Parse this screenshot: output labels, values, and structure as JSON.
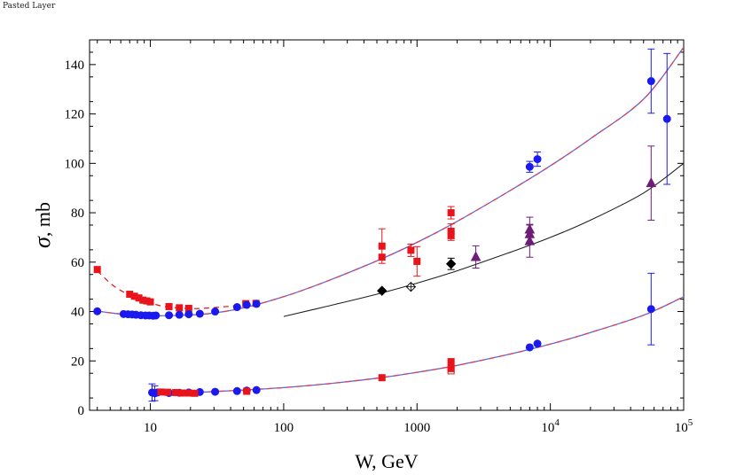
{
  "header": {
    "layer_label": "Pasted Layer"
  },
  "chart_data": {
    "type": "scatter",
    "title": "",
    "xlabel": "W, GeV",
    "ylabel_symbol": "σ",
    "ylabel_unit": ", mb",
    "x_scale": "log",
    "xlim": [
      3.5,
      100000
    ],
    "ylim": [
      0,
      150
    ],
    "y_ticks": [
      0,
      20,
      40,
      60,
      80,
      100,
      120,
      140
    ],
    "x_ticks": [
      {
        "value": 10,
        "base": "10",
        "exp": ""
      },
      {
        "value": 100,
        "base": "100",
        "exp": ""
      },
      {
        "value": 1000,
        "base": "1000",
        "exp": ""
      },
      {
        "value": 10000,
        "base": "10",
        "exp": "4"
      },
      {
        "value": 100000,
        "base": "10",
        "exp": "5"
      }
    ],
    "colors": {
      "red": "#e8141b",
      "blue": "#1a1aee",
      "purple": "#6e1c78",
      "black": "#000000",
      "curve_blue": "#5a6ae6",
      "curve_pink": "#e0405a"
    },
    "curves": [
      {
        "name": "total-cross-section-fit",
        "style": "blue-red-dashed",
        "points": [
          [
            4,
            40.2
          ],
          [
            6,
            39
          ],
          [
            10,
            38.3
          ],
          [
            20,
            38.6
          ],
          [
            30,
            39.4
          ],
          [
            50,
            41.5
          ],
          [
            100,
            46
          ],
          [
            200,
            51.8
          ],
          [
            500,
            60.5
          ],
          [
            1000,
            68
          ],
          [
            2000,
            76.5
          ],
          [
            5000,
            89
          ],
          [
            10000,
            99
          ],
          [
            20000,
            110
          ],
          [
            50000,
            126
          ],
          [
            100000,
            147
          ]
        ]
      },
      {
        "name": "pp-low-energy-fit",
        "style": "red-dashed",
        "points": [
          [
            4,
            56.5
          ],
          [
            5,
            51.5
          ],
          [
            6,
            48.5
          ],
          [
            8,
            45.2
          ],
          [
            10,
            43.5
          ],
          [
            13,
            42
          ],
          [
            20,
            41.2
          ],
          [
            30,
            41.6
          ],
          [
            60,
            43
          ]
        ]
      },
      {
        "name": "inelastic-fit",
        "style": "black-solid",
        "points": [
          [
            100,
            38
          ],
          [
            200,
            41.8
          ],
          [
            500,
            47
          ],
          [
            1000,
            51.5
          ],
          [
            2000,
            56.5
          ],
          [
            5000,
            64
          ],
          [
            10000,
            70
          ],
          [
            20000,
            77
          ],
          [
            50000,
            88
          ],
          [
            100000,
            100
          ]
        ]
      },
      {
        "name": "elastic-fit",
        "style": "blue-red-dashed",
        "points": [
          [
            10,
            7
          ],
          [
            20,
            7.2
          ],
          [
            50,
            8.2
          ],
          [
            100,
            9.2
          ],
          [
            200,
            10.6
          ],
          [
            500,
            13
          ],
          [
            1000,
            15.4
          ],
          [
            2000,
            18.2
          ],
          [
            5000,
            22.8
          ],
          [
            10000,
            26.8
          ],
          [
            20000,
            31.5
          ],
          [
            50000,
            38.5
          ],
          [
            100000,
            46
          ]
        ]
      }
    ],
    "series": [
      {
        "name": "pp-total",
        "marker": "square",
        "color": "red",
        "points": [
          {
            "x": 4,
            "y": 57
          },
          {
            "x": 7,
            "y": 47
          },
          {
            "x": 7.6,
            "y": 46.2
          },
          {
            "x": 8.2,
            "y": 45.5
          },
          {
            "x": 8.8,
            "y": 44.6
          },
          {
            "x": 9.4,
            "y": 44.3
          },
          {
            "x": 10,
            "y": 43.9
          },
          {
            "x": 13.8,
            "y": 42
          },
          {
            "x": 16.5,
            "y": 41.5
          },
          {
            "x": 19.4,
            "y": 41.3
          },
          {
            "x": 52,
            "y": 43.2
          },
          {
            "x": 62,
            "y": 43.3
          },
          {
            "x": 546,
            "y": 62
          },
          {
            "x": 546,
            "y": 66.5,
            "err": 7
          },
          {
            "x": 900,
            "y": 64.8,
            "err": 2.5
          },
          {
            "x": 1000,
            "y": 60.3,
            "err": 6
          },
          {
            "x": 1800,
            "y": 80,
            "err": 2.5
          },
          {
            "x": 1800,
            "y": 72.5,
            "err": 3
          },
          {
            "x": 1800,
            "y": 70.8,
            "err": 2
          }
        ]
      },
      {
        "name": "pbar-p-total",
        "marker": "circle",
        "color": "blue",
        "points": [
          {
            "x": 4,
            "y": 40.1
          },
          {
            "x": 6.3,
            "y": 39
          },
          {
            "x": 6.8,
            "y": 38.9
          },
          {
            "x": 7.3,
            "y": 38.8
          },
          {
            "x": 7.8,
            "y": 38.7
          },
          {
            "x": 8.5,
            "y": 38.5
          },
          {
            "x": 9.2,
            "y": 38.4
          },
          {
            "x": 9.8,
            "y": 38.4
          },
          {
            "x": 10.5,
            "y": 38.3
          },
          {
            "x": 11,
            "y": 38.4
          },
          {
            "x": 13.8,
            "y": 38.5
          },
          {
            "x": 16.5,
            "y": 38.7
          },
          {
            "x": 19.4,
            "y": 38.9
          },
          {
            "x": 23.5,
            "y": 39.1
          },
          {
            "x": 30.6,
            "y": 40
          },
          {
            "x": 44.7,
            "y": 41.8
          },
          {
            "x": 52.8,
            "y": 42.7
          },
          {
            "x": 62.5,
            "y": 43.1
          },
          {
            "x": 7000,
            "y": 98.6,
            "err": 2.2
          },
          {
            "x": 8000,
            "y": 101.7,
            "err": 2.9
          },
          {
            "x": 57000,
            "y": 133.3,
            "err": 13
          },
          {
            "x": 75000,
            "y": 118,
            "err": 26.5
          }
        ]
      },
      {
        "name": "inelastic-atlas",
        "marker": "triangle",
        "color": "purple",
        "points": [
          {
            "x": 2760,
            "y": 62.1,
            "err": 4.5
          },
          {
            "x": 7000,
            "y": 73.2,
            "err": 5
          },
          {
            "x": 7000,
            "y": 71.3,
            "err": 4
          },
          {
            "x": 7000,
            "y": 68.5,
            "err": 6.5
          },
          {
            "x": 57000,
            "y": 92,
            "err": 15
          }
        ]
      },
      {
        "name": "inelastic-sppbar",
        "marker": "diamond",
        "color": "black",
        "points": [
          {
            "x": 546,
            "y": 48.4
          },
          {
            "x": 1800,
            "y": 59.3,
            "err": 2.3
          },
          {
            "x": 900,
            "y": 50,
            "open": true
          }
        ]
      },
      {
        "name": "elastic-pbar-p",
        "marker": "circle",
        "color": "blue",
        "points": [
          {
            "x": 10.3,
            "y": 7.2,
            "err": 3.5
          },
          {
            "x": 10.8,
            "y": 6.9,
            "err": 3
          },
          {
            "x": 11.3,
            "y": 7.2
          },
          {
            "x": 13.8,
            "y": 7
          },
          {
            "x": 16.5,
            "y": 7.1
          },
          {
            "x": 19.4,
            "y": 7.2
          },
          {
            "x": 23.5,
            "y": 7.4
          },
          {
            "x": 30.6,
            "y": 7.5
          },
          {
            "x": 44.7,
            "y": 7.8
          },
          {
            "x": 52.8,
            "y": 8
          },
          {
            "x": 62.5,
            "y": 8.2
          },
          {
            "x": 7000,
            "y": 25.5
          },
          {
            "x": 8000,
            "y": 27
          },
          {
            "x": 57000,
            "y": 41,
            "err": 14.5
          }
        ]
      },
      {
        "name": "elastic-pp",
        "marker": "square",
        "color": "red",
        "points": [
          {
            "x": 12,
            "y": 7.4
          },
          {
            "x": 13.5,
            "y": 7.3
          },
          {
            "x": 15.5,
            "y": 7.2
          },
          {
            "x": 17.2,
            "y": 7
          },
          {
            "x": 19.4,
            "y": 7
          },
          {
            "x": 21.5,
            "y": 6.9
          },
          {
            "x": 52.8,
            "y": 7.7
          },
          {
            "x": 546,
            "y": 13.2
          },
          {
            "x": 1800,
            "y": 19.7
          },
          {
            "x": 1800,
            "y": 16.9
          },
          {
            "x": 1800,
            "y": 16,
            "open": true
          }
        ]
      }
    ]
  }
}
